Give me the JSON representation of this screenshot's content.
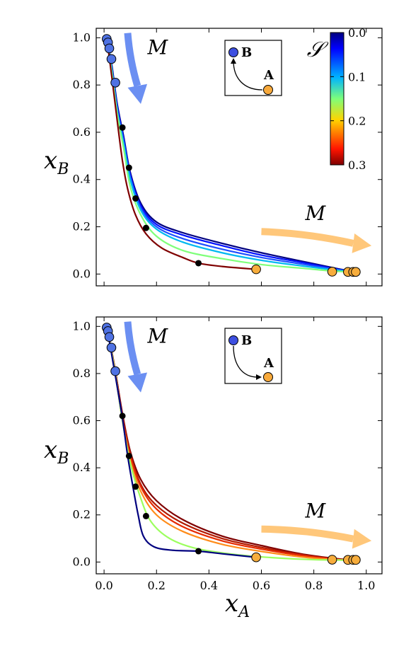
{
  "chart_data": [
    {
      "type": "line",
      "panel": "top",
      "xlabel": "",
      "ylabel": "x_B",
      "xlim": [
        -0.03,
        1.06
      ],
      "ylim": [
        -0.05,
        1.04
      ],
      "x_ticks": [
        0.0,
        0.2,
        0.4,
        0.6,
        0.8,
        1.0
      ],
      "y_ticks": [
        0.0,
        0.2,
        0.4,
        0.6,
        0.8,
        1.0
      ],
      "x_tick_labels_visible": false,
      "y_tick_labels": [
        "0.0",
        "0.2",
        "0.4",
        "0.6",
        "0.8",
        "1.0"
      ],
      "grid": false,
      "series": [
        {
          "color": "#00007f",
          "points": [
            [
              0.01,
              1.0
            ],
            [
              0.03,
              0.88
            ],
            [
              0.05,
              0.72
            ],
            [
              0.075,
              0.58
            ],
            [
              0.1,
              0.43
            ],
            [
              0.14,
              0.3
            ],
            [
              0.2,
              0.22
            ],
            [
              0.3,
              0.175
            ],
            [
              0.45,
              0.13
            ],
            [
              0.6,
              0.09
            ],
            [
              0.75,
              0.055
            ],
            [
              0.88,
              0.025
            ],
            [
              0.95,
              0.01
            ]
          ]
        },
        {
          "color": "#0010ff",
          "points": [
            [
              0.01,
              1.0
            ],
            [
              0.03,
              0.87
            ],
            [
              0.05,
              0.71
            ],
            [
              0.075,
              0.57
            ],
            [
              0.1,
              0.42
            ],
            [
              0.14,
              0.29
            ],
            [
              0.2,
              0.21
            ],
            [
              0.3,
              0.165
            ],
            [
              0.45,
              0.12
            ],
            [
              0.6,
              0.08
            ],
            [
              0.75,
              0.05
            ],
            [
              0.88,
              0.022
            ],
            [
              0.95,
              0.01
            ]
          ]
        },
        {
          "color": "#1f4fff",
          "points": [
            [
              0.01,
              1.0
            ],
            [
              0.03,
              0.86
            ],
            [
              0.05,
              0.7
            ],
            [
              0.075,
              0.56
            ],
            [
              0.1,
              0.41
            ],
            [
              0.14,
              0.28
            ],
            [
              0.2,
              0.2
            ],
            [
              0.3,
              0.15
            ],
            [
              0.45,
              0.105
            ],
            [
              0.6,
              0.07
            ],
            [
              0.75,
              0.043
            ],
            [
              0.88,
              0.02
            ],
            [
              0.95,
              0.01
            ]
          ]
        },
        {
          "color": "#00b8f0",
          "points": [
            [
              0.01,
              1.0
            ],
            [
              0.03,
              0.86
            ],
            [
              0.05,
              0.69
            ],
            [
              0.075,
              0.55
            ],
            [
              0.1,
              0.4
            ],
            [
              0.14,
              0.27
            ],
            [
              0.2,
              0.19
            ],
            [
              0.3,
              0.135
            ],
            [
              0.45,
              0.09
            ],
            [
              0.6,
              0.058
            ],
            [
              0.75,
              0.035
            ],
            [
              0.88,
              0.017
            ],
            [
              0.95,
              0.01
            ]
          ]
        },
        {
          "color": "#7fff7a",
          "points": [
            [
              0.01,
              1.0
            ],
            [
              0.03,
              0.85
            ],
            [
              0.05,
              0.68
            ],
            [
              0.075,
              0.53
            ],
            [
              0.1,
              0.37
            ],
            [
              0.14,
              0.25
            ],
            [
              0.2,
              0.16
            ],
            [
              0.3,
              0.1
            ],
            [
              0.45,
              0.065
            ],
            [
              0.6,
              0.04
            ],
            [
              0.75,
              0.025
            ],
            [
              0.88,
              0.012
            ],
            [
              0.95,
              0.01
            ]
          ]
        },
        {
          "color": "#7f0000",
          "points": [
            [
              0.01,
              1.0
            ],
            [
              0.03,
              0.83
            ],
            [
              0.05,
              0.65
            ],
            [
              0.07,
              0.48
            ],
            [
              0.09,
              0.36
            ],
            [
              0.12,
              0.25
            ],
            [
              0.16,
              0.17
            ],
            [
              0.22,
              0.11
            ],
            [
              0.3,
              0.07
            ],
            [
              0.36,
              0.046
            ],
            [
              0.45,
              0.032
            ],
            [
              0.58,
              0.02
            ]
          ]
        }
      ],
      "markers_blue": [
        [
          0.01,
          0.995
        ],
        [
          0.015,
          0.98
        ],
        [
          0.02,
          0.955
        ],
        [
          0.028,
          0.91
        ],
        [
          0.043,
          0.81
        ]
      ],
      "markers_black": [
        [
          0.07,
          0.62
        ],
        [
          0.095,
          0.45
        ],
        [
          0.12,
          0.32
        ],
        [
          0.16,
          0.195
        ],
        [
          0.36,
          0.046
        ]
      ],
      "markers_orange": [
        [
          0.58,
          0.02
        ],
        [
          0.87,
          0.01
        ],
        [
          0.93,
          0.009
        ],
        [
          0.95,
          0.009
        ],
        [
          0.96,
          0.009
        ]
      ],
      "arrows": [
        {
          "label": "M",
          "color": "#6b8ff2",
          "from": [
            0.09,
            1.02
          ],
          "to": [
            0.14,
            0.72
          ]
        },
        {
          "label": "M",
          "color": "#ffc77a",
          "from": [
            0.6,
            0.18
          ],
          "to": [
            1.02,
            0.12
          ]
        }
      ],
      "inset": {
        "source_label": "A",
        "target_label": "B",
        "source_color": "#f7a93b",
        "target_color": "#3d4fe0"
      },
      "colorbar": {
        "label": "𝒮",
        "ticks": [
          "0.0",
          "0.1",
          "0.2",
          "0.3"
        ],
        "range": [
          0.0,
          0.3
        ],
        "reversed": true
      }
    },
    {
      "type": "line",
      "panel": "bottom",
      "xlabel": "x_A",
      "ylabel": "x_B",
      "xlim": [
        -0.03,
        1.06
      ],
      "ylim": [
        -0.05,
        1.04
      ],
      "x_ticks": [
        0.0,
        0.2,
        0.4,
        0.6,
        0.8,
        1.0
      ],
      "y_ticks": [
        0.0,
        0.2,
        0.4,
        0.6,
        0.8,
        1.0
      ],
      "x_tick_labels": [
        "0.0",
        "0.2",
        "0.4",
        "0.6",
        "0.8",
        "1.0"
      ],
      "y_tick_labels": [
        "0.0",
        "0.2",
        "0.4",
        "0.6",
        "0.8",
        "1.0"
      ],
      "grid": false,
      "series": [
        {
          "color": "#7f0000",
          "points": [
            [
              0.01,
              1.0
            ],
            [
              0.04,
              0.83
            ],
            [
              0.07,
              0.63
            ],
            [
              0.1,
              0.47
            ],
            [
              0.14,
              0.35
            ],
            [
              0.2,
              0.26
            ],
            [
              0.3,
              0.18
            ],
            [
              0.45,
              0.11
            ],
            [
              0.6,
              0.07
            ],
            [
              0.75,
              0.035
            ],
            [
              0.88,
              0.015
            ],
            [
              0.95,
              0.008
            ]
          ]
        },
        {
          "color": "#b31a00",
          "points": [
            [
              0.01,
              1.0
            ],
            [
              0.04,
              0.83
            ],
            [
              0.07,
              0.62
            ],
            [
              0.1,
              0.46
            ],
            [
              0.14,
              0.33
            ],
            [
              0.2,
              0.24
            ],
            [
              0.3,
              0.165
            ],
            [
              0.45,
              0.1
            ],
            [
              0.6,
              0.062
            ],
            [
              0.75,
              0.032
            ],
            [
              0.88,
              0.013
            ],
            [
              0.95,
              0.008
            ]
          ]
        },
        {
          "color": "#e62b00",
          "points": [
            [
              0.01,
              1.0
            ],
            [
              0.04,
              0.82
            ],
            [
              0.07,
              0.61
            ],
            [
              0.1,
              0.45
            ],
            [
              0.14,
              0.32
            ],
            [
              0.2,
              0.225
            ],
            [
              0.3,
              0.15
            ],
            [
              0.45,
              0.09
            ],
            [
              0.6,
              0.055
            ],
            [
              0.75,
              0.028
            ],
            [
              0.88,
              0.012
            ],
            [
              0.95,
              0.008
            ]
          ]
        },
        {
          "color": "#ff8c1a",
          "points": [
            [
              0.01,
              1.0
            ],
            [
              0.04,
              0.82
            ],
            [
              0.07,
              0.6
            ],
            [
              0.1,
              0.43
            ],
            [
              0.14,
              0.3
            ],
            [
              0.2,
              0.2
            ],
            [
              0.3,
              0.13
            ],
            [
              0.45,
              0.075
            ],
            [
              0.6,
              0.045
            ],
            [
              0.75,
              0.022
            ],
            [
              0.88,
              0.01
            ],
            [
              0.95,
              0.008
            ]
          ]
        },
        {
          "color": "#9cff5e",
          "points": [
            [
              0.01,
              1.0
            ],
            [
              0.04,
              0.82
            ],
            [
              0.07,
              0.6
            ],
            [
              0.1,
              0.42
            ],
            [
              0.14,
              0.27
            ],
            [
              0.18,
              0.17
            ],
            [
              0.25,
              0.1
            ],
            [
              0.35,
              0.058
            ],
            [
              0.5,
              0.032
            ],
            [
              0.65,
              0.018
            ],
            [
              0.8,
              0.01
            ],
            [
              0.95,
              0.008
            ]
          ]
        },
        {
          "color": "#00007f",
          "points": [
            [
              0.01,
              1.0
            ],
            [
              0.04,
              0.81
            ],
            [
              0.07,
              0.61
            ],
            [
              0.09,
              0.45
            ],
            [
              0.11,
              0.32
            ],
            [
              0.13,
              0.2
            ],
            [
              0.15,
              0.11
            ],
            [
              0.19,
              0.065
            ],
            [
              0.26,
              0.05
            ],
            [
              0.36,
              0.046
            ],
            [
              0.45,
              0.035
            ],
            [
              0.58,
              0.02
            ]
          ]
        }
      ],
      "markers_blue": [
        [
          0.01,
          0.995
        ],
        [
          0.015,
          0.98
        ],
        [
          0.02,
          0.955
        ],
        [
          0.028,
          0.91
        ],
        [
          0.043,
          0.81
        ]
      ],
      "markers_black": [
        [
          0.07,
          0.62
        ],
        [
          0.095,
          0.45
        ],
        [
          0.12,
          0.32
        ],
        [
          0.16,
          0.195
        ],
        [
          0.36,
          0.046
        ]
      ],
      "markers_orange": [
        [
          0.58,
          0.02
        ],
        [
          0.87,
          0.01
        ],
        [
          0.93,
          0.009
        ],
        [
          0.95,
          0.009
        ],
        [
          0.96,
          0.009
        ]
      ],
      "arrows": [
        {
          "label": "M",
          "color": "#6b8ff2",
          "from": [
            0.09,
            1.02
          ],
          "to": [
            0.14,
            0.72
          ]
        },
        {
          "label": "M",
          "color": "#ffc77a",
          "from": [
            0.6,
            0.14
          ],
          "to": [
            1.02,
            0.09
          ]
        }
      ],
      "inset": {
        "source_label": "B",
        "target_label": "A",
        "source_color": "#3d4fe0",
        "target_color": "#f7a93b"
      }
    }
  ],
  "colors": {
    "marker_blue": "#4f72e3",
    "marker_orange": "#f7ad3c",
    "marker_black": "#000000",
    "axes": "#000000"
  }
}
